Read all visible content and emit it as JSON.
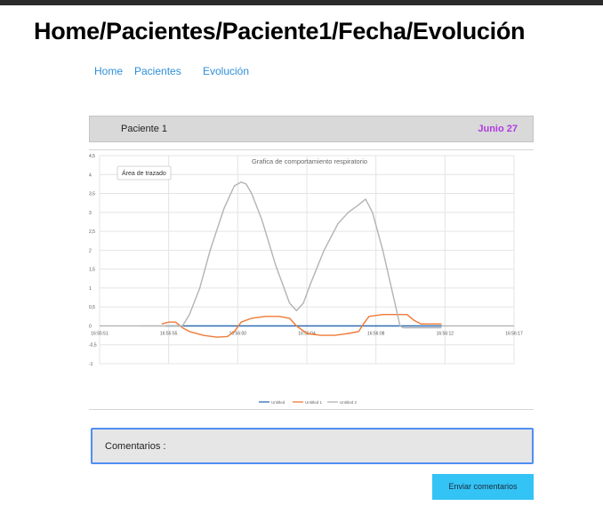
{
  "page": {
    "title": "Home/Pacientes/Paciente1/Fecha/Evolución"
  },
  "nav": {
    "items": [
      {
        "label": "Home"
      },
      {
        "label": "Pacientes"
      },
      {
        "label": "Evolución"
      }
    ]
  },
  "patient": {
    "name": "Paciente 1",
    "date": "Junio 27"
  },
  "chart_data": {
    "type": "line",
    "title": "Grafica de comportamiento respiratorio",
    "tooltip": "Área de trazado",
    "xlabel": "",
    "ylabel": "",
    "ylim": [
      -1,
      4.5
    ],
    "y_ticks": [
      "4,5",
      "4",
      "3,5",
      "3",
      "2,5",
      "2",
      "1,5",
      "1",
      "0,5",
      "0",
      "-0,5",
      "-1"
    ],
    "y_tick_values": [
      4.5,
      4,
      3.5,
      3,
      2.5,
      2,
      1.5,
      1,
      0.5,
      0,
      -0.5,
      -1
    ],
    "x_ticks": [
      "16:55:51",
      "16:55:55",
      "16:56:00",
      "16:56:04",
      "16:56:08",
      "16:56:12",
      "16:56:17"
    ],
    "xlim": [
      0,
      6
    ],
    "grid": true,
    "legend_position": "bottom",
    "series": [
      {
        "name": "Untitled",
        "color": "#2e6db4",
        "x": [
          0.95,
          4.95
        ],
        "y": [
          0,
          0
        ]
      },
      {
        "name": "Untitled 1",
        "color": "#f07a35",
        "x": [
          0.9,
          1.0,
          1.1,
          1.2,
          1.3,
          1.5,
          1.7,
          1.85,
          1.95,
          2.05,
          2.2,
          2.4,
          2.6,
          2.75,
          2.85,
          3.0,
          3.2,
          3.4,
          3.6,
          3.75,
          3.82,
          3.9,
          4.1,
          4.3,
          4.45,
          4.55,
          4.65,
          4.8,
          4.95
        ],
        "y": [
          0.05,
          0.1,
          0.1,
          -0.05,
          -0.15,
          -0.25,
          -0.3,
          -0.28,
          -0.15,
          0.1,
          0.2,
          0.25,
          0.25,
          0.2,
          0.0,
          -0.2,
          -0.25,
          -0.25,
          -0.2,
          -0.15,
          0.05,
          0.25,
          0.3,
          0.3,
          0.3,
          0.15,
          0.05,
          0.05,
          0.05
        ]
      },
      {
        "name": "Untitled 2",
        "color": "#b3b3b3",
        "x": [
          0.6,
          1.2,
          1.3,
          1.45,
          1.6,
          1.8,
          1.95,
          2.05,
          2.12,
          2.2,
          2.35,
          2.55,
          2.75,
          2.85,
          2.95,
          3.05,
          3.25,
          3.45,
          3.6,
          3.75,
          3.85,
          3.95,
          4.1,
          4.25,
          4.35,
          4.4,
          4.6,
          4.95
        ],
        "y": [
          0.0,
          0.0,
          0.3,
          1.0,
          2.0,
          3.1,
          3.7,
          3.8,
          3.75,
          3.5,
          2.8,
          1.6,
          0.6,
          0.4,
          0.6,
          1.1,
          2.0,
          2.7,
          3.0,
          3.2,
          3.35,
          3.0,
          2.0,
          0.8,
          0.0,
          -0.05,
          -0.05,
          -0.05
        ]
      }
    ]
  },
  "comments": {
    "label": "Comentarios :"
  },
  "actions": {
    "send_label": "Enviar comentarios"
  }
}
